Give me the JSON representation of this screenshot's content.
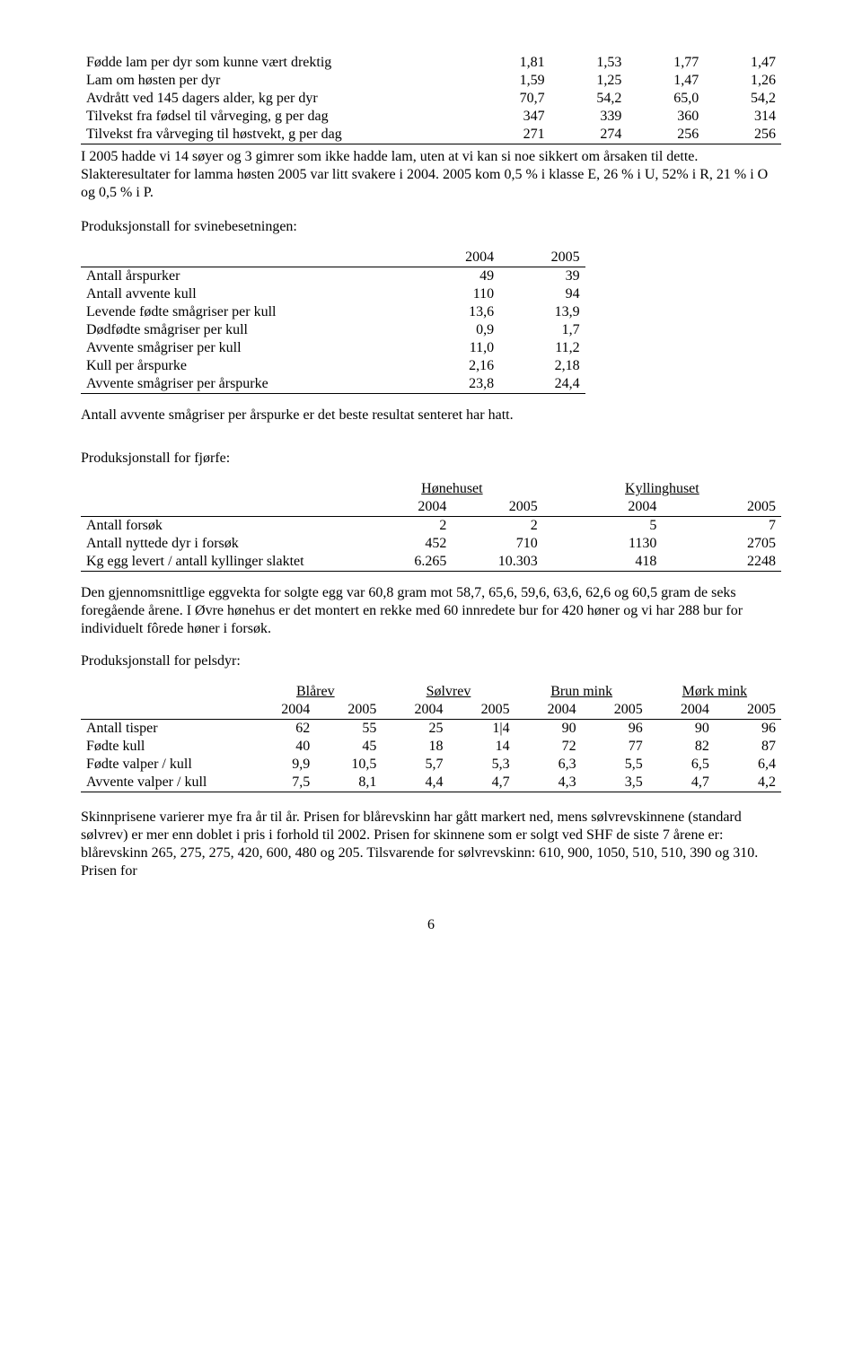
{
  "table1": {
    "rows": [
      {
        "label": "Fødde lam per dyr som kunne vært drektig",
        "v": [
          "1,81",
          "1,53",
          "1,77",
          "1,47"
        ]
      },
      {
        "label": "Lam om høsten per dyr",
        "v": [
          "1,59",
          "1,25",
          "1,47",
          "1,26"
        ]
      },
      {
        "label": "Avdrått ved 145 dagers alder, kg per dyr",
        "v": [
          "70,7",
          "54,2",
          "65,0",
          "54,2"
        ]
      },
      {
        "label": "Tilvekst fra fødsel til vårveging, g per dag",
        "v": [
          "347",
          "339",
          "360",
          "314"
        ]
      },
      {
        "label": "Tilvekst fra vårveging til høstvekt, g per dag",
        "v": [
          "271",
          "274",
          "256",
          "256"
        ]
      }
    ]
  },
  "para1": "I 2005 hadde vi 14 søyer og 3 gimrer som ikke hadde lam, uten at vi kan si noe sikkert om årsaken til dette. Slakteresultater for lamma høsten 2005 var litt svakere i 2004.  2005 kom 0,5 %  i klasse E, 26 % i U, 52% i R, 21 % i O og 0,5 % i P.",
  "section2_title": "Produksjonstall for svinebesetningen:",
  "table2": {
    "headers": [
      "",
      "2004",
      "2005"
    ],
    "rows": [
      {
        "label": "Antall årspurker",
        "v": [
          "49",
          "39"
        ]
      },
      {
        "label": "Antall avvente kull",
        "v": [
          "110",
          "94"
        ]
      },
      {
        "label": "Levende fødte smågriser per kull",
        "v": [
          "13,6",
          "13,9"
        ]
      },
      {
        "label": "Dødfødte smågriser per kull",
        "v": [
          "0,9",
          "1,7"
        ]
      },
      {
        "label": "Avvente smågriser per kull",
        "v": [
          "11,0",
          "11,2"
        ]
      },
      {
        "label": "Kull per årspurke",
        "v": [
          "2,16",
          "2,18"
        ]
      },
      {
        "label": "Avvente smågriser per årspurke",
        "v": [
          "23,8",
          "24,4"
        ]
      }
    ]
  },
  "para2": "Antall avvente smågriser per årspurke er det beste resultat senteret har hatt.",
  "section3_title": "Produksjonstall for fjørfe:",
  "table3": {
    "group_headers": [
      "",
      "Hønehuset",
      "Kyllinghuset"
    ],
    "year_headers": [
      "",
      "2004",
      "2005",
      "2004",
      "2005"
    ],
    "rows": [
      {
        "label": "Antall forsøk",
        "v": [
          "2",
          "2",
          "5",
          "7"
        ]
      },
      {
        "label": "Antall nyttede dyr i forsøk",
        "v": [
          "452",
          "710",
          "1130",
          "2705"
        ]
      },
      {
        "label": "Kg egg levert / antall kyllinger slaktet",
        "v": [
          "6.265",
          "10.303",
          "418",
          "2248"
        ]
      }
    ]
  },
  "para3": "Den gjennomsnittlige eggvekta for solgte egg var 60,8 gram mot 58,7, 65,6, 59,6, 63,6, 62,6 og 60,5 gram de seks foregående årene. I Øvre hønehus er det montert en rekke med 60 innredete bur for 420 høner og vi har 288 bur for individuelt fôrede høner i forsøk.",
  "section4_title": "Produksjonstall for pelsdyr:",
  "table4": {
    "group_headers": [
      "",
      "Blårev",
      "Sølvrev",
      "Brun mink",
      "Mørk mink"
    ],
    "year_headers": [
      "",
      "2004",
      "2005",
      "2004",
      "2005",
      "2004",
      "2005",
      "2004",
      "2005"
    ],
    "rows": [
      {
        "label": "Antall tisper",
        "v": [
          "62",
          "55",
          "25",
          "1|4",
          "90",
          "96",
          "90",
          "96"
        ]
      },
      {
        "label": "Fødte kull",
        "v": [
          "40",
          "45",
          "18",
          "14",
          "72",
          "77",
          "82",
          "87"
        ]
      },
      {
        "label": "Fødte valper / kull",
        "v": [
          "9,9",
          "10,5",
          "5,7",
          "5,3",
          "6,3",
          "5,5",
          "6,5",
          "6,4"
        ]
      },
      {
        "label": "Avvente valper / kull",
        "v": [
          "7,5",
          "8,1",
          "4,4",
          "4,7",
          "4,3",
          "3,5",
          "4,7",
          "4,2"
        ]
      }
    ]
  },
  "para4": "Skinnprisene varierer mye fra år til år. Prisen for blårevskinn  har gått markert ned, mens sølvrevskinnene (standard sølvrev) er mer enn doblet i pris i forhold til 2002. Prisen for skinnene som er solgt ved SHF de siste 7 årene er: blårevskinn 265, 275, 275, 420, 600, 480 og 205. Tilsvarende for sølvrevskinn: 610, 900, 1050, 510, 510, 390 og 310. Prisen for",
  "page_number": "6"
}
